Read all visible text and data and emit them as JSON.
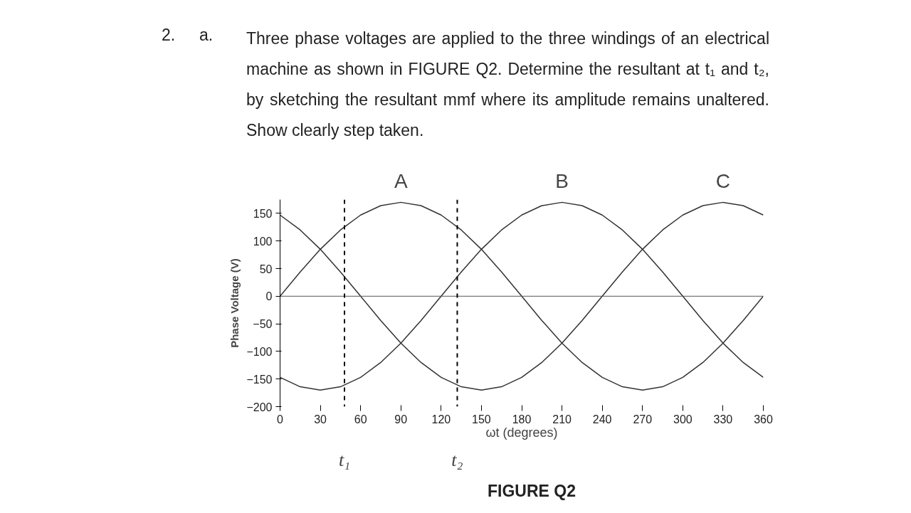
{
  "chart_data": {
    "type": "line",
    "annotations": [
      "2.",
      "a.",
      "Three phase voltages are applied to the three windings of an electrical machine as shown in FIGURE Q2. Determine the resultant at t₁ and t₂, by sketching the resultant mmf where its amplitude remains unaltered. Show clearly step taken.",
      "FIGURE Q2"
    ],
    "xlabel": "ωt (degrees)",
    "ylabel": "Phase Voltage (V)",
    "x": [
      0,
      15,
      30,
      45,
      60,
      75,
      90,
      105,
      120,
      135,
      150,
      165,
      180,
      195,
      210,
      225,
      240,
      255,
      270,
      285,
      300,
      315,
      330,
      345,
      360
    ],
    "series": [
      {
        "name": "A",
        "color": "#333333",
        "values": [
          0,
          44,
          85,
          120,
          147,
          164,
          170,
          164,
          147,
          120,
          85,
          44,
          0,
          -44,
          -85,
          -120,
          -147,
          -164,
          -170,
          -164,
          -147,
          -120,
          -85,
          -44,
          0
        ]
      },
      {
        "name": "B",
        "color": "#333333",
        "values": [
          -147,
          -164,
          -170,
          -164,
          -147,
          -120,
          -85,
          -44,
          0,
          44,
          85,
          120,
          147,
          164,
          170,
          164,
          147,
          120,
          85,
          44,
          0,
          -44,
          -85,
          -120,
          -147
        ]
      },
      {
        "name": "C",
        "color": "#333333",
        "values": [
          147,
          120,
          85,
          44,
          0,
          -44,
          -85,
          -120,
          -147,
          -164,
          -170,
          -164,
          -147,
          -120,
          -85,
          -44,
          0,
          44,
          85,
          120,
          147,
          164,
          170,
          164,
          147
        ]
      }
    ],
    "xlim": [
      0,
      360
    ],
    "ylim": [
      -200,
      175
    ],
    "xticks": [
      0,
      30,
      60,
      90,
      120,
      150,
      180,
      210,
      240,
      270,
      300,
      330,
      360
    ],
    "yticks": [
      -200,
      -150,
      -100,
      -50,
      0,
      50,
      100,
      150
    ],
    "ref_lines": [
      {
        "axis": "y",
        "value": 0,
        "color": "#555555",
        "line_style": "solid"
      },
      {
        "axis": "x",
        "value": 48,
        "label": "t₁",
        "color": "#000000",
        "line_style": "dashed"
      },
      {
        "axis": "x",
        "value": 132,
        "label": "t₂",
        "color": "#000000",
        "line_style": "dashed"
      }
    ],
    "grid": false,
    "marker": "none",
    "line_style": "solid"
  }
}
